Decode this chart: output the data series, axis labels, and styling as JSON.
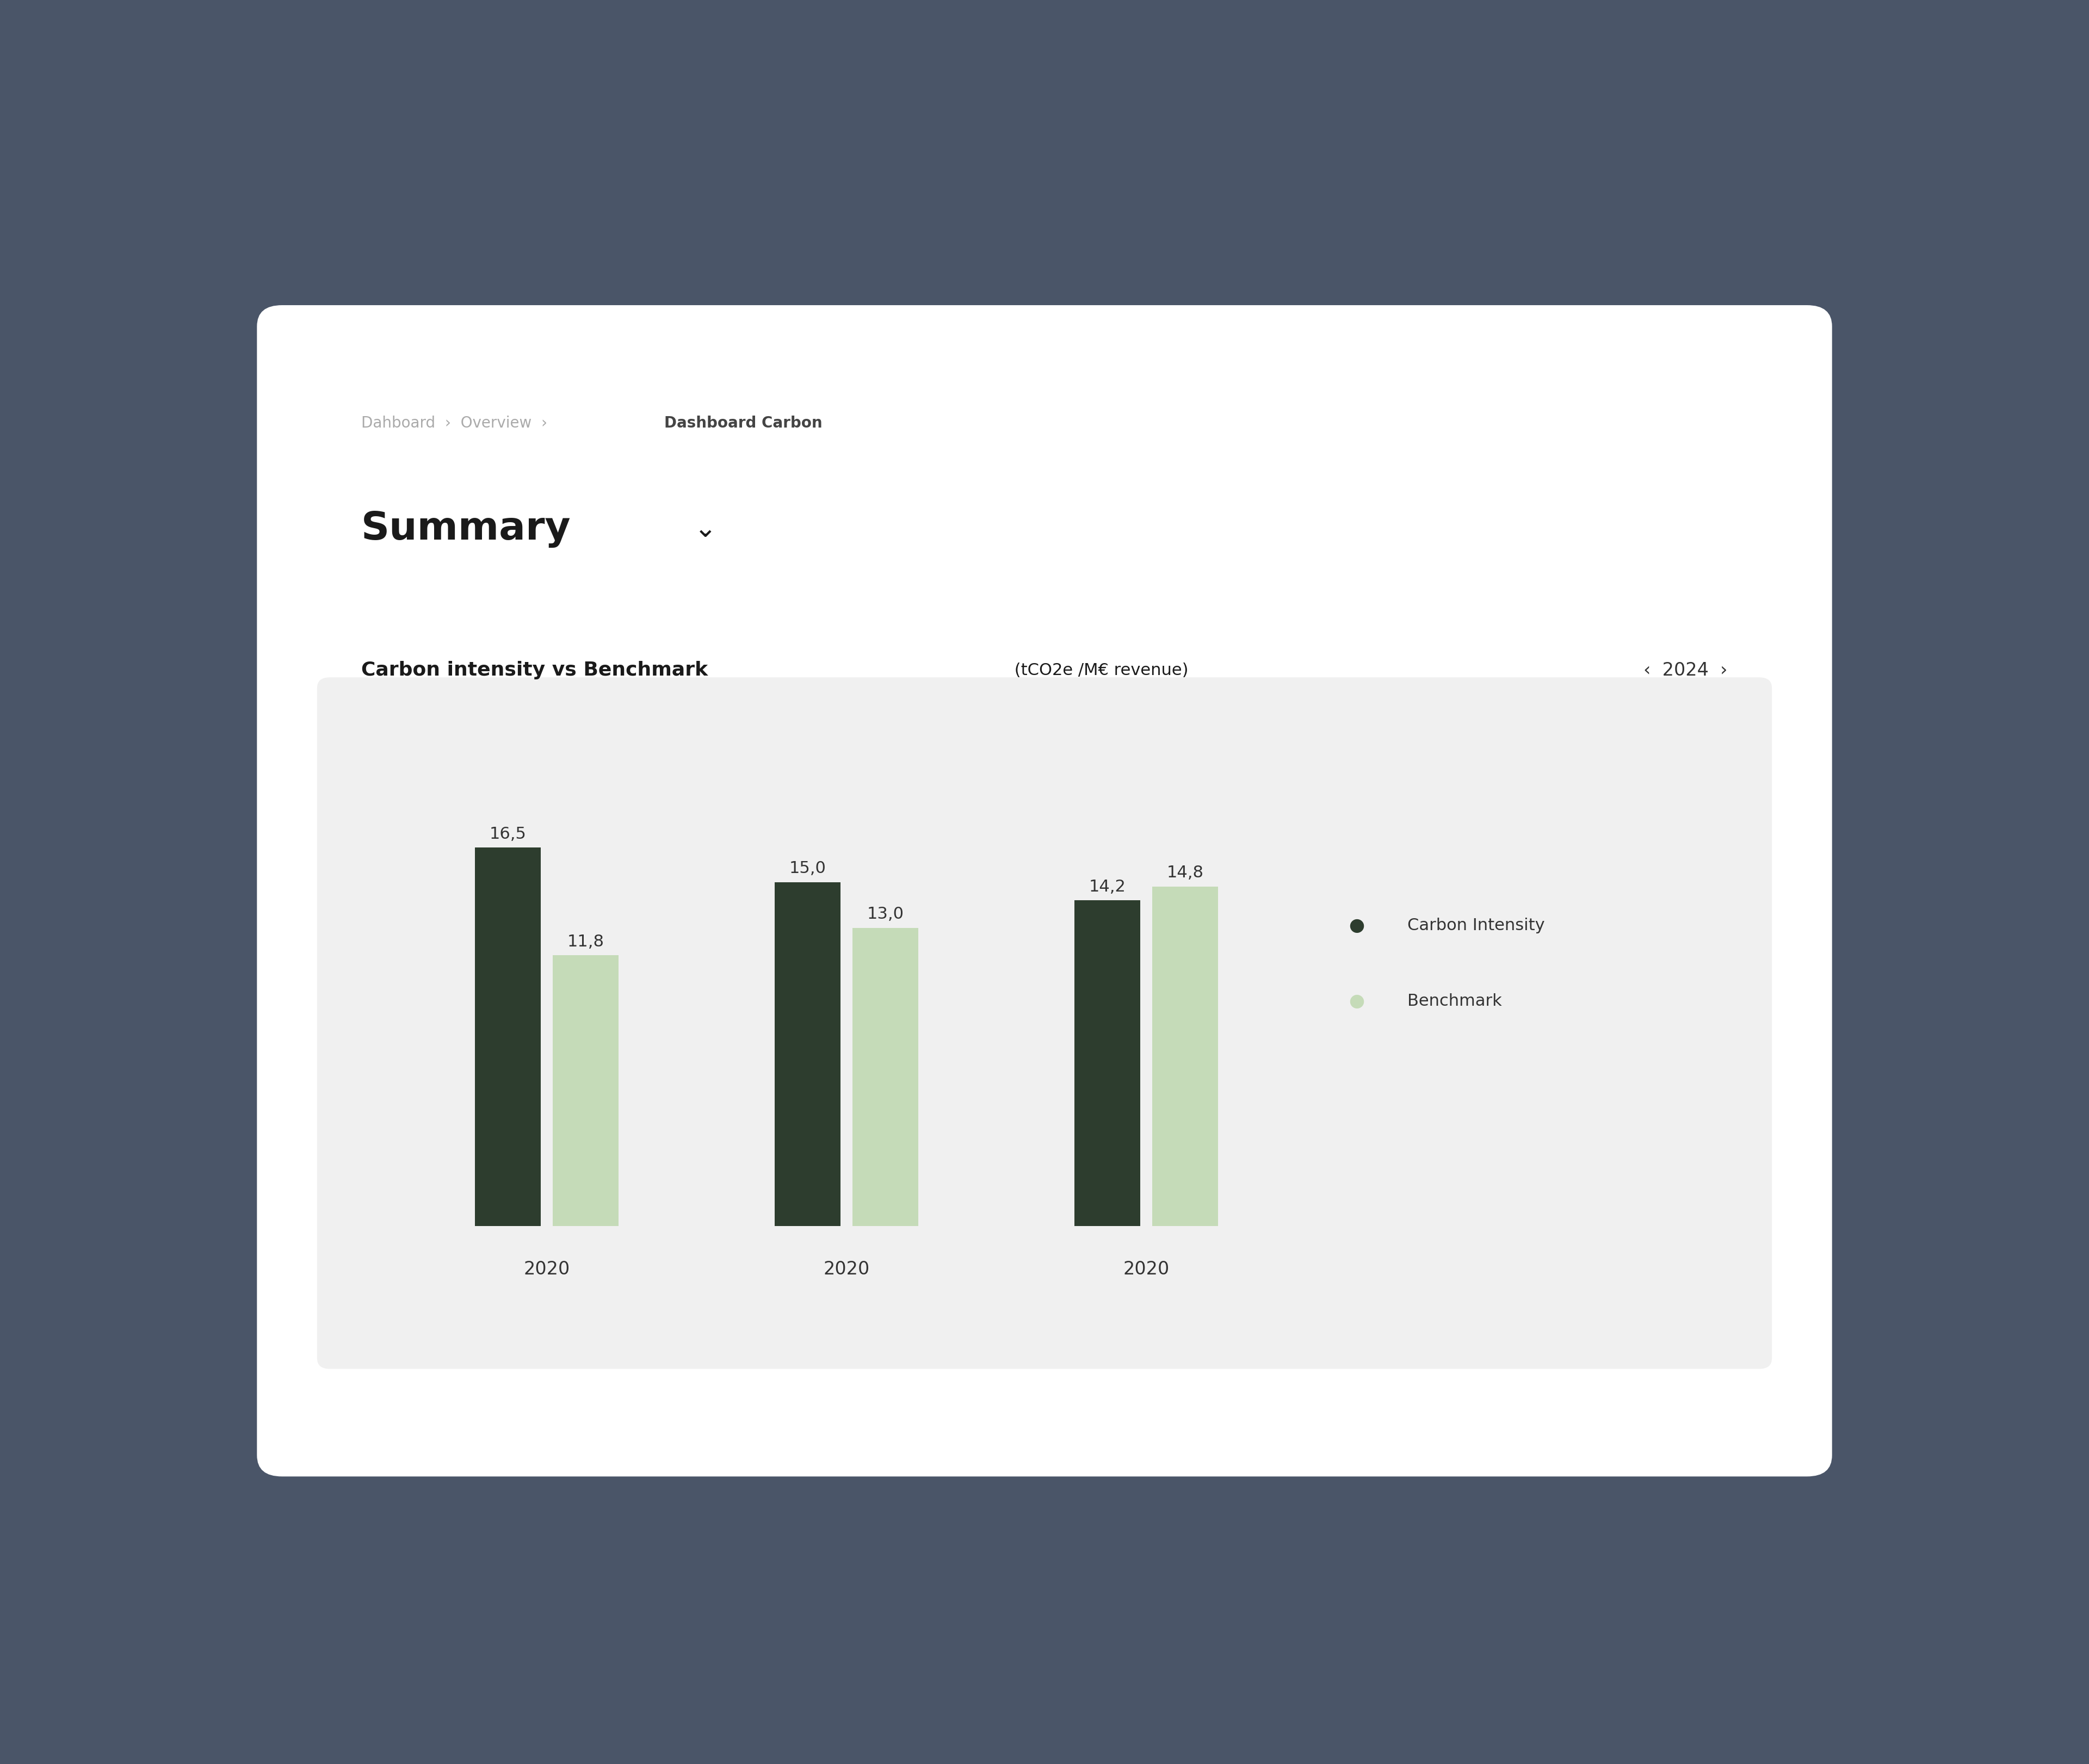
{
  "background_color": "#4a5568",
  "card_color": "#ffffff",
  "breadcrumb_plain": "Dahboard  ›  Overview  ›  ",
  "breadcrumb_bold": "Dashboard Carbon",
  "breadcrumb_plain_color": "#aaaaaa",
  "breadcrumb_bold_color": "#444444",
  "title": "Summary",
  "title_chevron": " ⌄",
  "title_color": "#1a1a1a",
  "chart_title_bold": "Carbon intensity vs Benchmark",
  "chart_title_light": " (tCO2e /M€ revenue)",
  "chart_title_color": "#1a1a1a",
  "year_label": "‹  2024  ›",
  "year_color": "#333333",
  "categories": [
    "2020",
    "2020",
    "2020"
  ],
  "carbon_intensity": [
    16.5,
    15.0,
    14.2
  ],
  "benchmark": [
    11.8,
    13.0,
    14.8
  ],
  "carbon_intensity_color": "#2d3d2e",
  "benchmark_color": "#c5dbb8",
  "chart_panel_color": "#f0f0f0",
  "label_color": "#333333",
  "legend_ci_label": "Carbon Intensity",
  "legend_bm_label": "Benchmark",
  "legend_ci_color": "#2d3d2e",
  "legend_bm_color": "#c5dbb8",
  "ylim": [
    0,
    20
  ]
}
